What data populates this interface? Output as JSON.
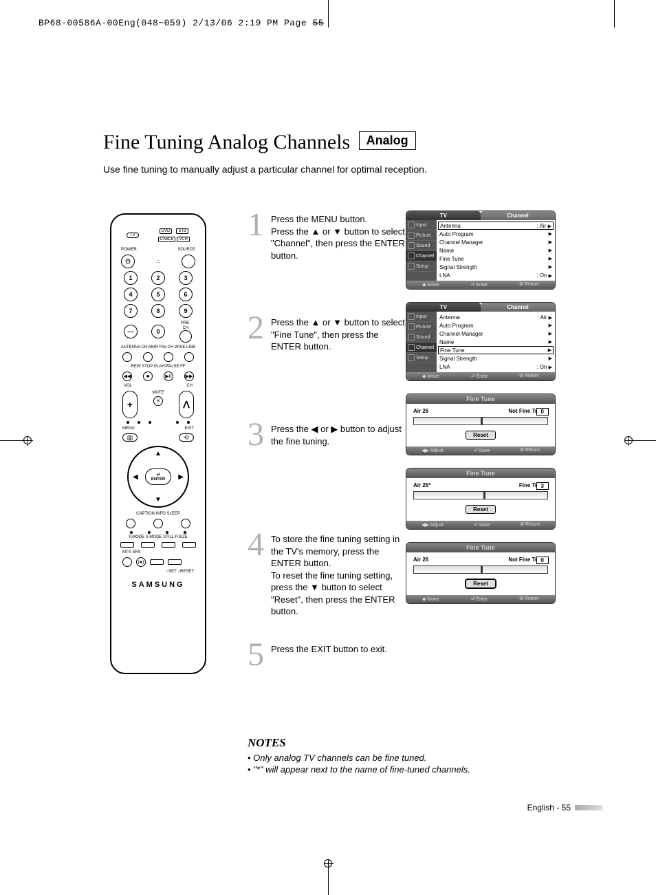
{
  "crop_header": {
    "text_pre": "BP68-00586A-00Eng(048~059)  2/13/06  2:19 PM  Page",
    "text_strike": "55"
  },
  "title": "Fine Tuning Analog Channels",
  "badge": "Analog",
  "intro": "Use fine tuning to manually adjust a particular channel for optimal reception.",
  "remote": {
    "top_boxes_row1": [
      "DVD",
      "STB"
    ],
    "top_boxes_row2": [
      "CABLE",
      "VCR"
    ],
    "tv_oval": "TV",
    "power": "POWER",
    "source": "SOURCE",
    "numbers": [
      "1",
      "2",
      "3",
      "4",
      "5",
      "6",
      "7",
      "8",
      "9",
      "0"
    ],
    "dash": "—",
    "prech": "PRE-CH",
    "row_labels_a": "ANTENNA CH.MGR  FAV.CH  WISE.LINK",
    "transport_labels": "REW    STOP   PLAY/PAUSE   FF",
    "transport": [
      "◀◀",
      "■",
      "▶II",
      "▶▶"
    ],
    "vol": "VOL",
    "ch": "CH",
    "mute": "MUTE",
    "plus": "+",
    "minus": "—",
    "up": "ᐱ",
    "down": "ᐯ",
    "menu": "MENU",
    "exit": "EXIT",
    "enter_top": "⏎",
    "enter": "ENTER",
    "ring_arrows": [
      "▲",
      "▼",
      "◀",
      "▶"
    ],
    "row_labels_b": "CAPTION     INFO        SLEEP",
    "row_labels_c": "P.MODE  S.MODE   STILL    P.SIZE",
    "row_labels_d": "MTS        SRS",
    "srs": "(●)",
    "set_reset": "○SET    ○RESET",
    "brand": "SAMSUNG"
  },
  "steps": [
    {
      "num": "1",
      "text": "Press the MENU button.\nPress the ▲ or ▼ button to select \"Channel\", then press the ENTER button."
    },
    {
      "num": "2",
      "text": "Press the ▲ or ▼ button to select \"Fine Tune\", then press the ENTER button."
    },
    {
      "num": "3",
      "text": "Press the ◀ or ▶ button to adjust the fine tuning."
    },
    {
      "num": "4",
      "text": "To store the fine tuning setting in the TV's memory, press the ENTER button.\nTo reset the fine tuning setting, press the ▼ button to select \"Reset\", then press the ENTER button."
    },
    {
      "num": "5",
      "text": "Press the EXIT button to exit."
    }
  ],
  "osd_channel": {
    "tab_left": "TV",
    "tab_right": "Channel",
    "side": [
      "Input",
      "Picture",
      "Sound",
      "Channel",
      "Setup"
    ],
    "rows": [
      {
        "l": "Antenna",
        "r": ": Air",
        "a": "▶"
      },
      {
        "l": "Auto Program",
        "r": "",
        "a": "▶"
      },
      {
        "l": "Channel Manager",
        "r": "",
        "a": "▶"
      },
      {
        "l": "Name",
        "r": "",
        "a": "▶"
      },
      {
        "l": "Fine Tune",
        "r": "",
        "a": "▶"
      },
      {
        "l": "Signal Strength",
        "r": "",
        "a": "▶"
      },
      {
        "l": "LNA",
        "r": ": On",
        "a": "▶"
      }
    ],
    "footer": [
      "◆ Move",
      "⏎ Enter",
      "⦾ Return"
    ]
  },
  "ft_panel": {
    "title": "Fine Tune",
    "reset": "Reset",
    "footer_adjust": [
      "◀▶ Adjust",
      "⏎ Save",
      "⦾ Return"
    ],
    "footer_move": [
      "◆ Move",
      "⏎ Enter",
      "⦾ Return"
    ],
    "p3_ch": "Air 26",
    "p3_status": "Not Fine Tuned",
    "p3_val": "0",
    "p3_tick": 50,
    "p4_ch": "Air 26*",
    "p4_status": "Fine Tuned",
    "p4_val": "3",
    "p4_tick": 52,
    "p5_ch": "Air 26",
    "p5_status": "Not Fine Tuned",
    "p5_val": "0",
    "p5_tick": 50
  },
  "notes": {
    "heading": "NOTES",
    "items": [
      "Only analog TV channels can be fine tuned.",
      "\"*\" will appear next to the name of fine-tuned channels."
    ]
  },
  "footer": "English - 55"
}
